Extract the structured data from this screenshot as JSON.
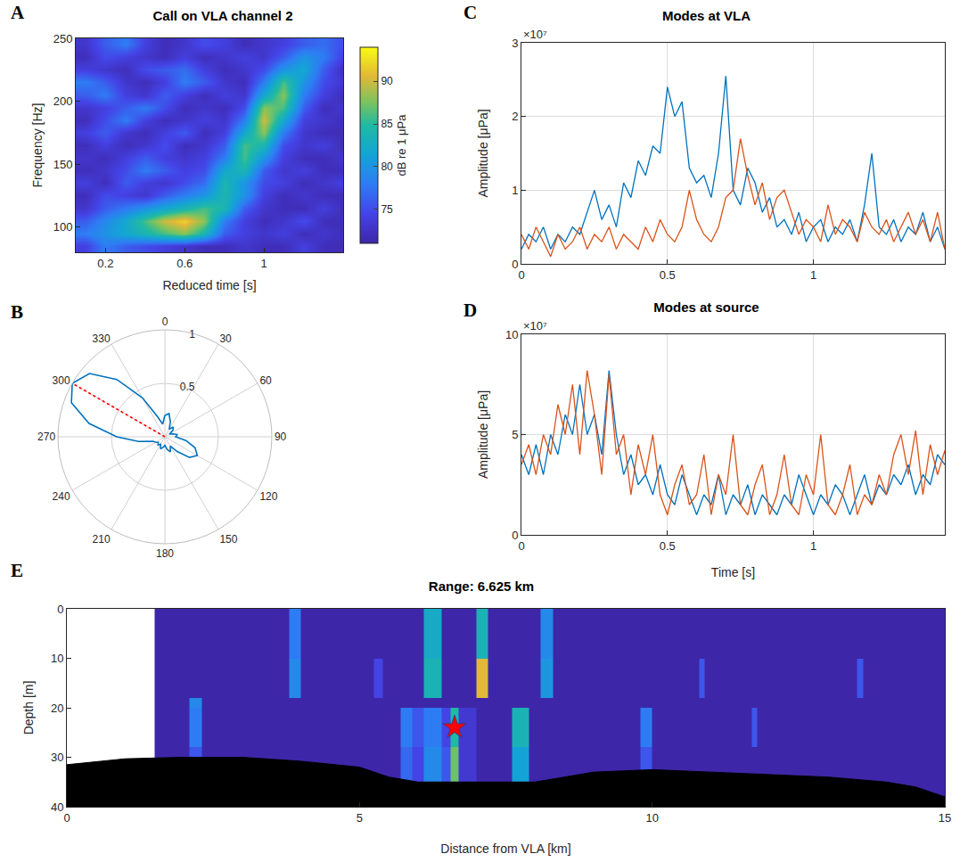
{
  "chart_data": [
    {
      "panel_label": "A",
      "type": "heatmap",
      "title": "Call on VLA channel 2",
      "x_label": "Reduced time [s]",
      "y_label": "Frequency [Hz]",
      "x": [
        0.1,
        0.2,
        0.3,
        0.4,
        0.5,
        0.6,
        0.7,
        0.8,
        0.9,
        1,
        1.1,
        1.2,
        1.3,
        1.4
      ],
      "y": [
        85,
        95,
        105,
        115,
        125,
        135,
        145,
        155,
        165,
        175,
        185,
        195,
        205,
        215,
        225,
        235,
        245
      ],
      "z": [
        [
          74,
          78,
          76,
          75,
          74,
          73,
          72,
          72,
          73,
          72,
          72,
          74,
          72,
          72
        ],
        [
          78,
          80,
          82,
          84,
          86,
          88,
          84,
          76,
          74,
          73,
          74,
          72,
          73,
          72
        ],
        [
          76,
          79,
          82,
          86,
          90,
          92,
          88,
          78,
          74,
          72,
          73,
          75,
          72,
          72
        ],
        [
          73,
          76,
          78,
          80,
          82,
          84,
          86,
          84,
          76,
          73,
          72,
          72,
          74,
          72
        ],
        [
          72,
          75,
          74,
          73,
          76,
          78,
          80,
          84,
          80,
          74,
          72,
          73,
          72,
          72
        ],
        [
          74,
          72,
          76,
          74,
          73,
          75,
          77,
          84,
          80,
          75,
          74,
          72,
          73,
          74
        ],
        [
          72,
          73,
          75,
          78,
          76,
          74,
          75,
          82,
          84,
          76,
          73,
          74,
          72,
          72
        ],
        [
          73,
          72,
          74,
          76,
          74,
          73,
          74,
          78,
          86,
          80,
          74,
          72,
          72,
          73
        ],
        [
          72,
          74,
          72,
          73,
          75,
          72,
          73,
          76,
          86,
          84,
          75,
          73,
          74,
          72
        ],
        [
          74,
          76,
          73,
          72,
          74,
          76,
          72,
          74,
          82,
          88,
          78,
          73,
          72,
          72
        ],
        [
          72,
          75,
          78,
          74,
          72,
          73,
          74,
          73,
          78,
          90,
          82,
          74,
          73,
          72
        ],
        [
          73,
          74,
          76,
          78,
          75,
          72,
          73,
          72,
          75,
          88,
          86,
          76,
          72,
          73
        ],
        [
          76,
          78,
          74,
          73,
          76,
          74,
          72,
          74,
          73,
          82,
          88,
          78,
          74,
          72
        ],
        [
          78,
          76,
          73,
          72,
          74,
          78,
          76,
          73,
          72,
          78,
          86,
          80,
          75,
          73
        ],
        [
          74,
          73,
          72,
          75,
          76,
          77,
          74,
          72,
          73,
          75,
          80,
          82,
          76,
          72
        ],
        [
          72,
          75,
          74,
          73,
          72,
          74,
          72,
          73,
          74,
          73,
          76,
          80,
          78,
          74
        ],
        [
          73,
          76,
          78,
          74,
          72,
          73,
          75,
          74,
          72,
          73,
          74,
          76,
          77,
          75
        ]
      ],
      "xlim": [
        0.05,
        1.4
      ],
      "xticks": [
        0.2,
        0.6,
        1
      ],
      "ylim": [
        80,
        250
      ],
      "yticks": [
        100,
        150,
        200,
        250
      ],
      "colorbar": {
        "title": "dB re 1 μPa",
        "range": [
          71,
          94
        ],
        "ticks": [
          75,
          80,
          85,
          90
        ]
      }
    },
    {
      "panel_label": "B",
      "type": "polar",
      "grid": true,
      "series": [
        {
          "color": "#0072BD",
          "line_style": "solid",
          "theta": [
            0,
            10,
            20,
            30,
            40,
            50,
            60,
            70,
            80,
            90,
            100,
            110,
            120,
            130,
            140,
            150,
            160,
            170,
            180,
            190,
            200,
            210,
            220,
            230,
            240,
            250,
            260,
            270,
            280,
            290,
            300,
            310,
            320,
            330,
            340,
            350,
            360
          ],
          "r": [
            0.2,
            0.22,
            0.15,
            0.08,
            0.12,
            0.1,
            0.05,
            0.08,
            0.12,
            0.1,
            0.2,
            0.3,
            0.35,
            0.3,
            0.18,
            0.1,
            0.15,
            0.12,
            0.08,
            0.1,
            0.12,
            0.08,
            0.1,
            0.08,
            0.1,
            0.12,
            0.25,
            0.45,
            0.72,
            0.93,
            1,
            0.92,
            0.7,
            0.42,
            0.2,
            0.12,
            0.2
          ]
        },
        {
          "color": "#ff0000",
          "line_style": "dotted",
          "theta": [
            300,
            300
          ],
          "r": [
            0,
            1
          ]
        }
      ],
      "rlim": [
        0,
        1
      ],
      "rticks": [
        0.5,
        1
      ],
      "theta_ticks": [
        0,
        30,
        60,
        90,
        120,
        150,
        180,
        210,
        240,
        270,
        300,
        330
      ]
    },
    {
      "panel_label": "C",
      "type": "line",
      "title": "Modes at VLA",
      "y_label": "Amplitude [μPa]",
      "y_exponent_label": "×10⁷",
      "grid": true,
      "x": [
        0,
        0.025,
        0.05,
        0.075,
        0.1,
        0.125,
        0.15,
        0.175,
        0.2,
        0.225,
        0.25,
        0.275,
        0.3,
        0.325,
        0.35,
        0.375,
        0.4,
        0.425,
        0.45,
        0.475,
        0.5,
        0.525,
        0.55,
        0.575,
        0.6,
        0.625,
        0.65,
        0.675,
        0.7,
        0.725,
        0.75,
        0.775,
        0.8,
        0.825,
        0.85,
        0.875,
        0.9,
        0.925,
        0.95,
        0.975,
        1,
        1.025,
        1.05,
        1.075,
        1.1,
        1.125,
        1.15,
        1.175,
        1.2,
        1.225,
        1.25,
        1.275,
        1.3,
        1.325,
        1.35,
        1.375,
        1.4,
        1.425,
        1.45
      ],
      "series": [
        {
          "color": "#0072BD",
          "values": [
            0.2,
            0.4,
            0.3,
            0.5,
            0.2,
            0.4,
            0.3,
            0.5,
            0.4,
            0.7,
            1.0,
            0.6,
            0.8,
            0.5,
            1.1,
            0.9,
            1.4,
            1.2,
            1.6,
            1.5,
            2.4,
            2.0,
            2.2,
            1.3,
            1.1,
            1.2,
            0.9,
            1.5,
            2.55,
            1.0,
            0.8,
            1.3,
            1.1,
            0.7,
            0.9,
            0.5,
            0.6,
            0.4,
            0.7,
            0.3,
            0.5,
            0.6,
            0.3,
            0.5,
            0.4,
            0.6,
            0.3,
            0.8,
            1.5,
            0.5,
            0.4,
            0.6,
            0.3,
            0.5,
            0.4,
            0.7,
            0.3,
            0.5,
            0.2
          ]
        },
        {
          "color": "#D95319",
          "values": [
            0.4,
            0.2,
            0.5,
            0.3,
            0.1,
            0.4,
            0.2,
            0.3,
            0.5,
            0.2,
            0.4,
            0.3,
            0.5,
            0.2,
            0.4,
            0.3,
            0.2,
            0.5,
            0.3,
            0.6,
            0.4,
            0.3,
            0.5,
            1.0,
            0.6,
            0.4,
            0.3,
            0.5,
            0.9,
            1.0,
            1.7,
            1.2,
            0.8,
            1.1,
            0.6,
            0.9,
            1.0,
            0.7,
            0.4,
            0.6,
            0.5,
            0.3,
            0.8,
            0.4,
            0.6,
            0.5,
            0.3,
            0.7,
            0.5,
            0.4,
            0.6,
            0.3,
            0.5,
            0.7,
            0.4,
            0.6,
            0.3,
            0.7,
            0.2
          ]
        }
      ],
      "xlim": [
        0,
        1.45
      ],
      "xticks": [
        0,
        0.5,
        1
      ],
      "ylim": [
        0,
        3
      ],
      "yticks": [
        0,
        1,
        2,
        3
      ]
    },
    {
      "panel_label": "D",
      "type": "line",
      "title": "Modes at source",
      "x_label": "Time [s]",
      "y_label": "Amplitude [μPa]",
      "y_exponent_label": "×10⁷",
      "grid": true,
      "x": [
        0,
        0.025,
        0.05,
        0.075,
        0.1,
        0.125,
        0.15,
        0.175,
        0.2,
        0.225,
        0.25,
        0.275,
        0.3,
        0.325,
        0.35,
        0.375,
        0.4,
        0.425,
        0.45,
        0.475,
        0.5,
        0.525,
        0.55,
        0.575,
        0.6,
        0.625,
        0.65,
        0.675,
        0.7,
        0.725,
        0.75,
        0.775,
        0.8,
        0.825,
        0.85,
        0.875,
        0.9,
        0.925,
        0.95,
        0.975,
        1,
        1.025,
        1.05,
        1.075,
        1.1,
        1.125,
        1.15,
        1.175,
        1.2,
        1.225,
        1.25,
        1.275,
        1.3,
        1.325,
        1.35,
        1.375,
        1.4,
        1.425,
        1.45
      ],
      "series": [
        {
          "color": "#0072BD",
          "values": [
            4,
            3,
            4.5,
            3,
            5,
            4,
            6,
            5,
            7.5,
            5,
            6,
            4,
            8.2,
            5,
            3,
            4,
            2.5,
            3,
            2,
            3.5,
            2,
            1.5,
            3,
            2,
            1,
            2,
            1.5,
            3,
            1,
            2,
            1.5,
            2.5,
            1,
            2,
            1.5,
            1,
            2,
            1.5,
            3,
            2,
            1,
            2,
            1.5,
            2.5,
            2,
            1,
            2,
            3,
            1.5,
            2.5,
            2,
            3,
            2.5,
            3.5,
            2,
            3,
            2.5,
            4,
            3.5
          ]
        },
        {
          "color": "#D95319",
          "values": [
            3.5,
            4.5,
            3,
            5,
            4,
            6.5,
            5,
            7.5,
            4,
            8.2,
            6,
            3,
            8,
            4,
            5,
            2,
            4.5,
            3,
            5,
            2,
            1,
            2.5,
            3.5,
            1.5,
            2,
            4,
            1,
            3,
            2,
            5,
            1.5,
            1,
            2.5,
            3.5,
            1,
            2,
            4,
            1.5,
            1,
            3,
            2,
            5,
            1.5,
            1,
            2,
            3.5,
            1,
            2,
            1.5,
            3,
            2,
            4,
            5,
            3,
            5.2,
            2,
            4.5,
            3,
            4.2
          ]
        }
      ],
      "xlim": [
        0,
        1.45
      ],
      "xticks": [
        0,
        0.5,
        1
      ],
      "ylim": [
        0,
        10
      ],
      "yticks": [
        0,
        5,
        10
      ]
    },
    {
      "panel_label": "E",
      "type": "heatmap",
      "title": "Range: 6.625 km",
      "x_label": "Distance from VLA [km]",
      "y_label": "Depth [m]",
      "x_edges": [
        1.5,
        2.1,
        2.3,
        3.8,
        4.0,
        5.25,
        5.4,
        5.7,
        5.9,
        6.1,
        6.4,
        6.55,
        6.7,
        7.0,
        7.2,
        7.6,
        7.9,
        8.1,
        8.3,
        9.8,
        10.0,
        10.8,
        10.9,
        11.7,
        11.8,
        13.5,
        13.6,
        15
      ],
      "y_edges": [
        0,
        10,
        18,
        20,
        28,
        35,
        40
      ],
      "z": [
        [
          0,
          0,
          0,
          0.3,
          0,
          0,
          0,
          0,
          0,
          0.5,
          0,
          0,
          0,
          0.55,
          0,
          0,
          0,
          0.35,
          0,
          0,
          0,
          0,
          0,
          0,
          0,
          0,
          0
        ],
        [
          0,
          0,
          0,
          0.35,
          0,
          0.15,
          0,
          0,
          0,
          0.55,
          0,
          0,
          0,
          0.85,
          0,
          0,
          0,
          0.4,
          0,
          0,
          0,
          0.2,
          0,
          0,
          0,
          0.2,
          0
        ],
        [
          0,
          0.35,
          0,
          0,
          0,
          0,
          0,
          0,
          0,
          0,
          0,
          0,
          0,
          0,
          0,
          0,
          0,
          0,
          0,
          0,
          0,
          0,
          0,
          0,
          0,
          0,
          0
        ],
        [
          0,
          0.3,
          0,
          0,
          0,
          0,
          0,
          0.3,
          0.2,
          0.3,
          0.15,
          0.6,
          0.1,
          0,
          0,
          0.55,
          0,
          0,
          0,
          0.3,
          0,
          0,
          0,
          0.2,
          0,
          0,
          0
        ],
        [
          0,
          0.2,
          0,
          0,
          0,
          0,
          0,
          0.25,
          0.15,
          0.35,
          0.2,
          0.7,
          0.1,
          0,
          0,
          0.45,
          0,
          0,
          0,
          0.2,
          0,
          0,
          0,
          0,
          0,
          0,
          0
        ],
        [
          0,
          0,
          0,
          0,
          0,
          0,
          0,
          0,
          0,
          0,
          0,
          0,
          0,
          0,
          0,
          0,
          0,
          0,
          0,
          0,
          0,
          0,
          0,
          0,
          0,
          0,
          0
        ]
      ],
      "zlim": [
        0,
        1
      ],
      "xlim": [
        0,
        15
      ],
      "xticks": [
        0,
        5,
        10,
        15
      ],
      "ylim": [
        40,
        0
      ],
      "yticks": [
        0,
        10,
        20,
        30,
        40
      ],
      "bathymetry": {
        "color": "#000000",
        "x": [
          0,
          1,
          2,
          3,
          4,
          5,
          5.5,
          6,
          8,
          8.5,
          9,
          10,
          11,
          12,
          13,
          14,
          14.5,
          15
        ],
        "depth": [
          31.5,
          30.3,
          30,
          30,
          30.8,
          32,
          34,
          35,
          35,
          34,
          33,
          32.5,
          33,
          33.5,
          34,
          35,
          36,
          38
        ]
      },
      "source": {
        "x": 6.625,
        "depth": 24,
        "color": "#ff0000",
        "marker": "star"
      }
    }
  ]
}
